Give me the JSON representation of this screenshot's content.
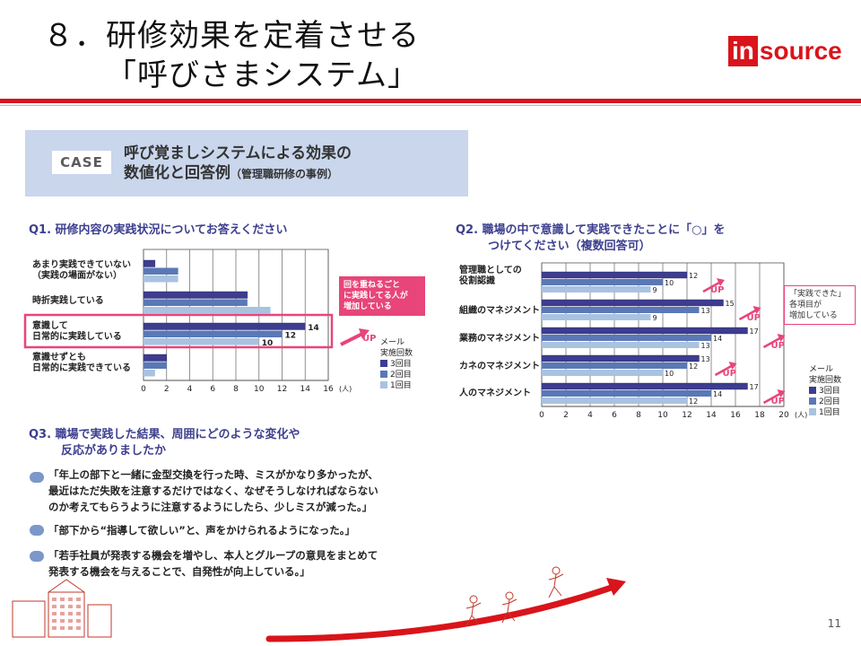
{
  "slide": {
    "title_line1": "８．研修効果を定着させる",
    "title_line2": "「呼びさまシステム」",
    "logo_in": "in",
    "logo_rest": "source",
    "page_number": "11"
  },
  "case": {
    "badge": "CASE",
    "title_line1": "呼び覚ましシステムによる効果の",
    "title_line2": "数値化と回答例",
    "title_note": "（管理職研修の事例）"
  },
  "colors": {
    "series3": "#3d3c8f",
    "series2": "#5a78b6",
    "series1": "#a9c2e0",
    "accent": "#e8457a",
    "brand": "#d9141b"
  },
  "chart_data": [
    {
      "type": "bar",
      "orientation": "horizontal",
      "title": "Q1. 研修内容の実践状況についてお答えください",
      "categories": [
        "あまり実践できていない\n（実践の場面がない）",
        "時折実践している",
        "意識して\n日常的に実践している",
        "意識せずとも\n日常的に実践できている"
      ],
      "series": [
        {
          "name": "3回目",
          "values": [
            1,
            9,
            14,
            2
          ]
        },
        {
          "name": "2回目",
          "values": [
            3,
            9,
            12,
            2
          ]
        },
        {
          "name": "1回目",
          "values": [
            3,
            11,
            10,
            1
          ]
        }
      ],
      "data_labels": [
        {
          "category": 2,
          "series": 0,
          "text": "14"
        },
        {
          "category": 2,
          "series": 1,
          "text": "12"
        },
        {
          "category": 2,
          "series": 2,
          "text": "10"
        }
      ],
      "xlim": [
        0,
        16
      ],
      "xticks": [
        "0",
        "2",
        "4",
        "6",
        "8",
        "10",
        "12",
        "14",
        "16"
      ],
      "unit": "(人)",
      "legend_title": "メール\n実施回数",
      "legend_position": "bottom-right",
      "callout": "回を重ねるごと\nに実践してる人が\n増加している",
      "up_label": "UP"
    },
    {
      "type": "bar",
      "orientation": "horizontal",
      "title": "Q2. 職場の中で意識して実践できたことに「○」を\nつけてください（複数回答可）",
      "categories": [
        "管理職としての\n役割認識",
        "組織のマネジメント",
        "業務のマネジメント",
        "カネのマネジメント",
        "人のマネジメント"
      ],
      "series": [
        {
          "name": "3回目",
          "values": [
            12,
            15,
            17,
            13,
            17
          ]
        },
        {
          "name": "2回目",
          "values": [
            10,
            13,
            14,
            12,
            14
          ]
        },
        {
          "name": "1回目",
          "values": [
            9,
            9,
            13,
            10,
            12
          ]
        }
      ],
      "xlim": [
        0,
        20
      ],
      "xticks": [
        "0",
        "2",
        "4",
        "6",
        "8",
        "10",
        "12",
        "14",
        "16",
        "18",
        "20"
      ],
      "unit": "(人)",
      "legend_title": "メール\n実施回数",
      "legend_position": "bottom-right",
      "callout": "「実践できた」\n各項目が\n増加している",
      "up_label": "UP"
    }
  ],
  "q3": {
    "title_line1": "Q3. 職場で実践した結果、周囲にどのような変化や",
    "title_line2": "反応がありましたか",
    "answers": [
      {
        "line1": "「年上の部下と一緒に金型交換を行った時、ミスがかなり多かったが、",
        "line2": "最近はただ失敗を注意するだけではなく、なぜそうしなければならない",
        "line3": "のか考えてもらうように注意するようにしたら、少しミスが減った。」"
      },
      {
        "line1": "「部下から“指導して欲しい”と、声をかけられるようになった。」"
      },
      {
        "line1": "「若手社員が発表する機会を増やし、本人とグループの意見をまとめて",
        "line2": "発表する機会を与えることで、自発性が向上している。」"
      }
    ]
  }
}
